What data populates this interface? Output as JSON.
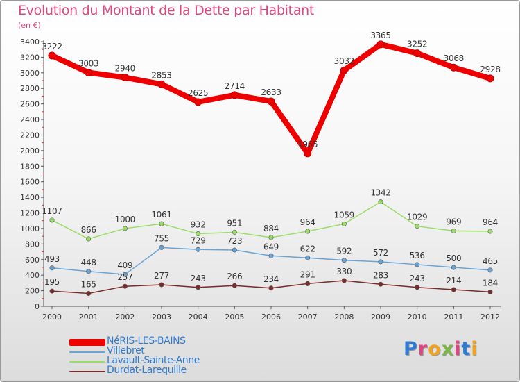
{
  "title": "Evolution du Montant de la Dette par Habitant",
  "subtitle": "(en €)",
  "logo": {
    "text": "Proxiti",
    "colors": [
      "#2e7bd1",
      "#e0457f",
      "#f0a31f",
      "#7ab648",
      "#e0457f",
      "#2e7bd1",
      "#f0a31f"
    ]
  },
  "chart_data": {
    "type": "line",
    "x": [
      2000,
      2001,
      2002,
      2003,
      2004,
      2005,
      2006,
      2007,
      2008,
      2009,
      2010,
      2011,
      2012
    ],
    "xlabel": "",
    "ylabel": "",
    "ylim": [
      0,
      3400
    ],
    "yticks": [
      0,
      200,
      400,
      600,
      800,
      1000,
      1200,
      1400,
      1600,
      1800,
      2000,
      2200,
      2400,
      2600,
      2800,
      3000,
      3200,
      3400
    ],
    "grid": false,
    "legend_position": "bottom-left",
    "series": [
      {
        "name": "NéRIS-LES-BAINS",
        "color": "#ee0000",
        "values": [
          3222,
          3003,
          2940,
          2853,
          2625,
          2714,
          2633,
          1965,
          3032,
          3365,
          3252,
          3068,
          2928
        ]
      },
      {
        "name": "Villebret",
        "color": "#6aa3d5",
        "values": [
          493,
          448,
          409,
          755,
          729,
          723,
          649,
          622,
          592,
          572,
          536,
          500,
          465
        ]
      },
      {
        "name": "Lavault-Sainte-Anne",
        "color": "#99dd66",
        "values": [
          1107,
          866,
          1000,
          1061,
          932,
          951,
          884,
          964,
          1059,
          1342,
          1029,
          969,
          964
        ]
      },
      {
        "name": "Durdat-Larequille",
        "color": "#7a2a2a",
        "values": [
          195,
          165,
          257,
          277,
          243,
          266,
          234,
          291,
          330,
          283,
          243,
          214,
          184
        ]
      }
    ]
  }
}
